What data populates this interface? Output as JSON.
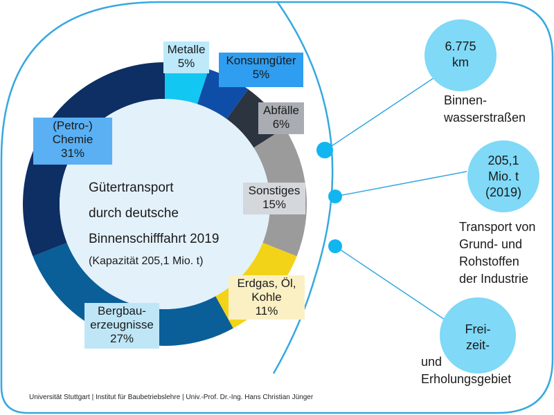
{
  "colors": {
    "accent": "#35a8e0",
    "bubble": "#7fd9f7",
    "donut_inner": "#e3f1fb"
  },
  "chart_data": {
    "type": "pie",
    "subtype": "donut",
    "title_lines": [
      "Gütertransport",
      "durch deutsche",
      "Binnenschifffahrt 2019"
    ],
    "subtitle": "(Kapazität 205,1 Mio. t)",
    "slices": [
      {
        "label_lines": [
          "Metalle"
        ],
        "value_label": "5%",
        "value": 5,
        "color": "#12c8f2",
        "box_color": "#bde9fb"
      },
      {
        "label_lines": [
          "Konsumgüter"
        ],
        "value_label": "5%",
        "value": 5,
        "color": "#0f4ea8",
        "box_color": "#2f9df0"
      },
      {
        "label_lines": [
          "Abfälle"
        ],
        "value_label": "6%",
        "value": 6,
        "color": "#2c3440",
        "box_color": "#a9adb3"
      },
      {
        "label_lines": [
          "Sonstiges"
        ],
        "value_label": "15%",
        "value": 15,
        "color": "#9b9b9b",
        "box_color": "#d4d7db"
      },
      {
        "label_lines": [
          "Erdgas, Öl,",
          "Kohle"
        ],
        "value_label": "11%",
        "value": 11,
        "color": "#f3d317",
        "box_color": "#fbf0c4"
      },
      {
        "label_lines": [
          "Bergbau-",
          "erzeugnisse"
        ],
        "value_label": "27%",
        "value": 27,
        "color": "#0a5f98",
        "box_color": "#bfe6f7"
      },
      {
        "label_lines": [
          "(Petro-)",
          "Chemie"
        ],
        "value_label": "31%",
        "value": 31,
        "color": "#0e2f63",
        "box_color": "#5ab0f3"
      }
    ]
  },
  "info": {
    "items": [
      {
        "bubble_lines": [
          "6.775",
          "km"
        ],
        "caption_lines": [
          "Binnen-",
          "wasserstraßen"
        ]
      },
      {
        "bubble_lines": [
          "205,1",
          "Mio. t",
          "(2019)"
        ],
        "caption_lines": [
          "Transport von",
          "Grund- und",
          "Rohstoffen",
          "der Industrie"
        ]
      },
      {
        "bubble_lines": [
          "Frei-",
          "zeit-"
        ],
        "caption_lines": [
          "und",
          "Erholungsgebiet"
        ]
      }
    ]
  },
  "footer": "Universität Stuttgart | Institut für Baubetriebslehre | Univ.-Prof. Dr.-Ing. Hans Christian Jünger"
}
